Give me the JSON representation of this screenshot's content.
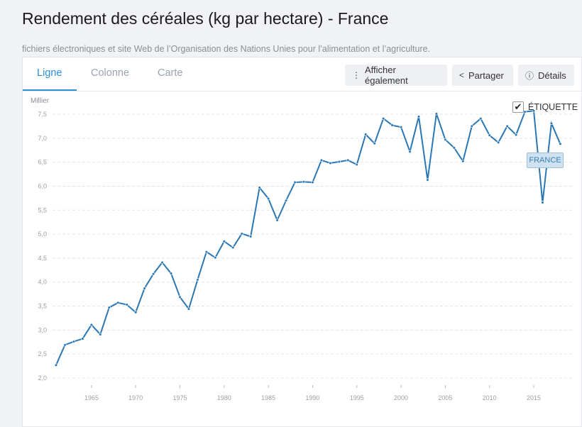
{
  "header": {
    "title": "Rendement des céréales (kg par hectare) - France",
    "source": "fichiers électroniques et site Web de l’Organisation des Nations Unies pour l’alimentation et l’agriculture."
  },
  "tabs": [
    {
      "label": "Ligne",
      "active": true
    },
    {
      "label": "Colonne"
    },
    {
      "label": "Carte"
    }
  ],
  "toolbar": {
    "also_label": "Afficher également",
    "share_label": "Partager",
    "details_label": "Détails"
  },
  "label_toggle": {
    "label": "ÉTIQUETTE",
    "checked": true
  },
  "colors": {
    "accent": "#2a8fd8",
    "line": "#2a77b4"
  },
  "chart_data": {
    "type": "line",
    "title": "Rendement des céréales (kg par hectare) - France",
    "ylabel": "Millier",
    "ylim": [
      2.0,
      7.5
    ],
    "yticks": [
      "2,0",
      "2,5",
      "3,0",
      "3,5",
      "4,0",
      "4,5",
      "5,0",
      "5,5",
      "6,0",
      "6,5",
      "7,0",
      "7,5"
    ],
    "xticks": [
      "1965",
      "1970",
      "1975",
      "1980",
      "1985",
      "1990",
      "1995",
      "2000",
      "2005",
      "2010",
      "2015"
    ],
    "grid": true,
    "series": [
      {
        "name": "FRANCE",
        "x_start": 1961,
        "values": [
          2.27,
          2.69,
          2.76,
          2.82,
          3.11,
          2.91,
          3.47,
          3.57,
          3.53,
          3.37,
          3.87,
          4.17,
          4.41,
          4.18,
          3.69,
          3.44,
          4.05,
          4.63,
          4.51,
          4.85,
          4.72,
          5.01,
          4.95,
          5.97,
          5.74,
          5.29,
          5.7,
          6.08,
          6.09,
          6.08,
          6.54,
          6.48,
          6.51,
          6.54,
          6.45,
          7.08,
          6.89,
          7.41,
          7.27,
          7.23,
          6.72,
          7.45,
          6.13,
          7.51,
          6.97,
          6.8,
          6.52,
          7.25,
          7.41,
          7.06,
          6.91,
          7.25,
          7.07,
          7.55,
          7.57,
          5.66,
          7.31,
          6.88
        ]
      }
    ]
  }
}
